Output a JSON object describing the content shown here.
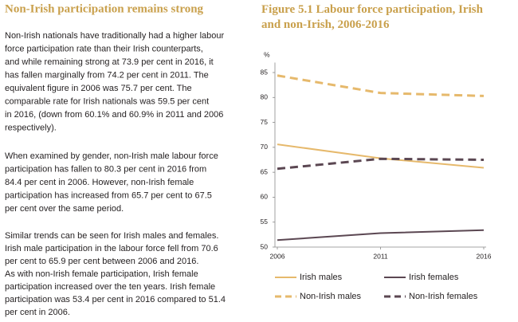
{
  "document": {
    "heading": "Non-Irish participation remains strong",
    "paragraphs": [
      [
        "Non-Irish nationals have traditionally had a higher labour",
        "force participation rate than their Irish counterparts,",
        "and while remaining strong at 73.9 per cent in 2016, it",
        "has fallen marginally from 74.2 per cent in 2011.  The",
        "equivalent figure in 2006 was 75.7 per cent.  The",
        "comparable rate for Irish nationals was 59.5 per cent",
        "in 2016, (down from 60.1% and 60.9% in 2011 and 2006",
        "respectively)."
      ],
      [
        "When examined by gender, non-Irish male labour force",
        "participation has fallen to 80.3 per cent in 2016 from",
        "84.4 per cent in 2006.  However, non-Irish female",
        "participation has increased from 65.7 per cent to 67.5",
        "per cent over the same period."
      ],
      [
        "Similar trends can be seen for Irish males and females.",
        "Irish male participation in the labour force fell from 70.6",
        "per cent to 65.9 per cent between 2006 and 2016.",
        "As with non-Irish female participation, Irish female",
        "participation increased over the ten years.  Irish female",
        "participation was 53.4 per cent in 2016 compared to 51.4",
        "per cent in 2006."
      ]
    ]
  },
  "chart_data": {
    "type": "line",
    "title": "Figure 5.1 Labour force participation, Irish and non-Irish, 2006-2016",
    "y_label": "%",
    "x": [
      2006,
      2011,
      2016
    ],
    "xlim": [
      2006,
      2016
    ],
    "xticks": [
      2006,
      2011,
      2016
    ],
    "ylim": [
      50,
      87
    ],
    "yticks": [
      50,
      55,
      60,
      65,
      70,
      75,
      80,
      85
    ],
    "grid": false,
    "series": [
      {
        "name": "Irish males",
        "color": "#e6b96c",
        "linestyle": "solid",
        "values": [
          70.6,
          67.8,
          65.9
        ]
      },
      {
        "name": "Irish females",
        "color": "#5b4752",
        "linestyle": "solid",
        "values": [
          51.4,
          52.8,
          53.4
        ]
      },
      {
        "name": "Non-Irish males",
        "color": "#e6b96c",
        "linestyle": "dashed",
        "values": [
          84.4,
          80.9,
          80.3
        ]
      },
      {
        "name": "Non-Irish females",
        "color": "#5b4752",
        "linestyle": "dashed",
        "values": [
          65.7,
          67.7,
          67.5
        ]
      }
    ]
  }
}
